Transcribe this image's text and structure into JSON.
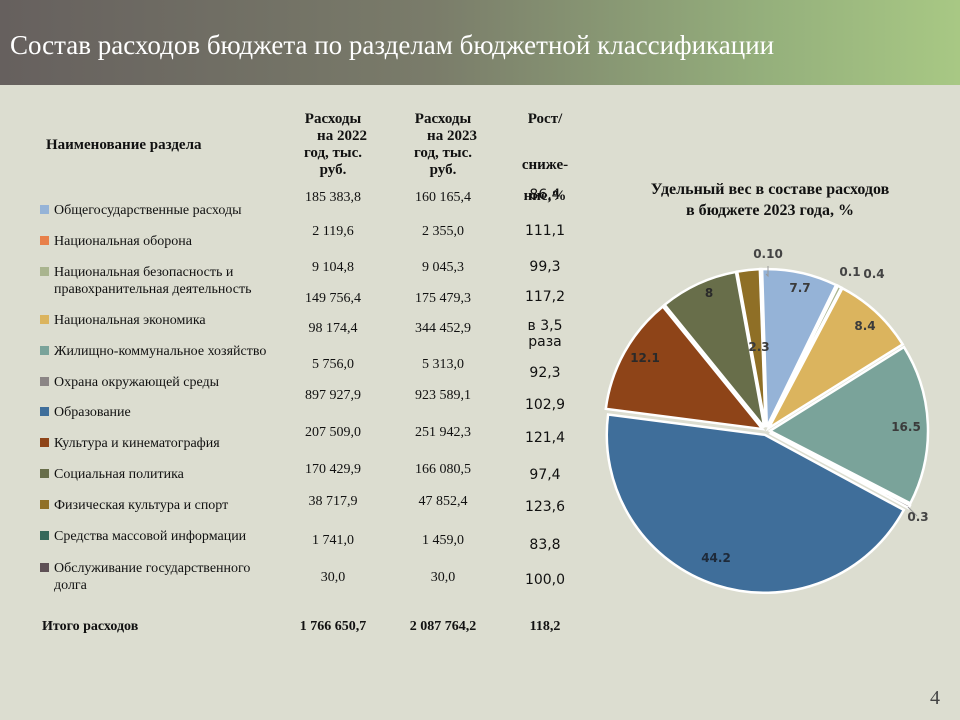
{
  "slide": {
    "title": "Состав расходов бюджета по разделам бюджетной классификации",
    "page_number": "4"
  },
  "table": {
    "headers": {
      "name": "Наименование раздела",
      "col2022": [
        "Расходы",
        "на 2022",
        "год, тыс.",
        "руб."
      ],
      "col2023": [
        "Расходы",
        "на 2023",
        "год, тыс.",
        "руб."
      ],
      "growth": [
        "Рост/",
        "сниже-",
        "ние,%"
      ]
    },
    "rows": [
      {
        "name": [
          "Общегосударственные расходы"
        ],
        "v2022": "185 383,8",
        "v2023": "160 165,4",
        "growth": [
          "86,4"
        ],
        "color": "#95b3d7"
      },
      {
        "name": [
          "Национальная оборона"
        ],
        "v2022": "2 119,6",
        "v2023": "2 355,0",
        "growth": [
          "111,1"
        ],
        "color": "#e8804a"
      },
      {
        "name": [
          "Национальная безопасность и",
          "правохранительная деятельность"
        ],
        "v2022": "9 104,8",
        "v2023": "9 045,3",
        "growth": [
          "99,3"
        ],
        "color": "#a9b48e"
      },
      {
        "name": [
          "Национальная экономика"
        ],
        "v2022": "149 756,4",
        "v2023": "175 479,3",
        "growth": [
          "117,2"
        ],
        "color": "#dbb45e"
      },
      {
        "name": [
          "Жилищно-коммунальное хозяйство"
        ],
        "v2022": "98 174,4",
        "v2023": "344 452,9",
        "growth": [
          "в 3,5",
          "раза"
        ],
        "color": "#7aa39a"
      },
      {
        "name": [
          "Охрана окружающей среды"
        ],
        "v2022": "5 756,0",
        "v2023": "5 313,0",
        "growth": [
          "92,3"
        ],
        "color": "#8b8585"
      },
      {
        "name": [
          "Образование"
        ],
        "v2022": "897 927,9",
        "v2023": "923 589,1",
        "growth": [
          "102,9"
        ],
        "color": "#3f6e9a"
      },
      {
        "name": [
          "Культура и кинематография"
        ],
        "v2022": "207 509,0",
        "v2023": "251 942,3",
        "growth": [
          "121,4"
        ],
        "color": "#8e4418"
      },
      {
        "name": [
          "Социальная политика"
        ],
        "v2022": "170 429,9",
        "v2023": "166 080,5",
        "growth": [
          "97,4"
        ],
        "color": "#686e4a"
      },
      {
        "name": [
          "Физическая культура и спорт"
        ],
        "v2022": "38 717,9",
        "v2023": "47 852,4",
        "growth": [
          "123,6"
        ],
        "color": "#8f6f26"
      },
      {
        "name": [
          "Средства массовой информации"
        ],
        "v2022": "1 741,0",
        "v2023": "1 459,0",
        "growth": [
          "83,8"
        ],
        "color": "#36685a"
      },
      {
        "name": [
          "Обслуживание государственного",
          "долга"
        ],
        "v2022": "30,0",
        "v2023": "30,0",
        "growth": [
          "100,0"
        ],
        "color": "#5e5055"
      }
    ],
    "total": {
      "label": "Итого расходов",
      "v2022": "1 766 650,7",
      "v2023": "2 087 764,2",
      "growth": "118,2"
    }
  },
  "chart_data": {
    "type": "pie",
    "title": [
      "Удельный вес в составе расходов",
      "в бюджете 2023 года, %"
    ],
    "slices": [
      {
        "name": "Общегосударственные расходы",
        "value": 7.7,
        "label": "7.7",
        "color": "#95b3d7"
      },
      {
        "name": "Национальная оборона",
        "value": 0.1,
        "label": "0.1",
        "color": "#e8804a"
      },
      {
        "name": "Национальная безопасность и правохранительная деятельность",
        "value": 0.4,
        "label": "0.4",
        "color": "#a9b48e"
      },
      {
        "name": "Национальная экономика",
        "value": 8.4,
        "label": "8.4",
        "color": "#dbb45e"
      },
      {
        "name": "Жилищно-коммунальное хозяйство",
        "value": 16.5,
        "label": "16.5",
        "color": "#7aa39a"
      },
      {
        "name": "Охрана окружающей среды",
        "value": 0.3,
        "label": "0.3",
        "color": "#8b8585"
      },
      {
        "name": "Образование",
        "value": 44.2,
        "label": "44.2",
        "color": "#3f6e9a"
      },
      {
        "name": "Культура и кинематография",
        "value": 12.1,
        "label": "12.1",
        "color": "#8e4418"
      },
      {
        "name": "Социальная политика",
        "value": 8,
        "label": "8",
        "color": "#686e4a"
      },
      {
        "name": "Физическая культура и спорт",
        "value": 2.3,
        "label": "2.3",
        "color": "#8f6f26"
      },
      {
        "name": "Средства массовой информации",
        "value": 0.1,
        "label": "0.10",
        "color": "#36685a"
      }
    ]
  }
}
